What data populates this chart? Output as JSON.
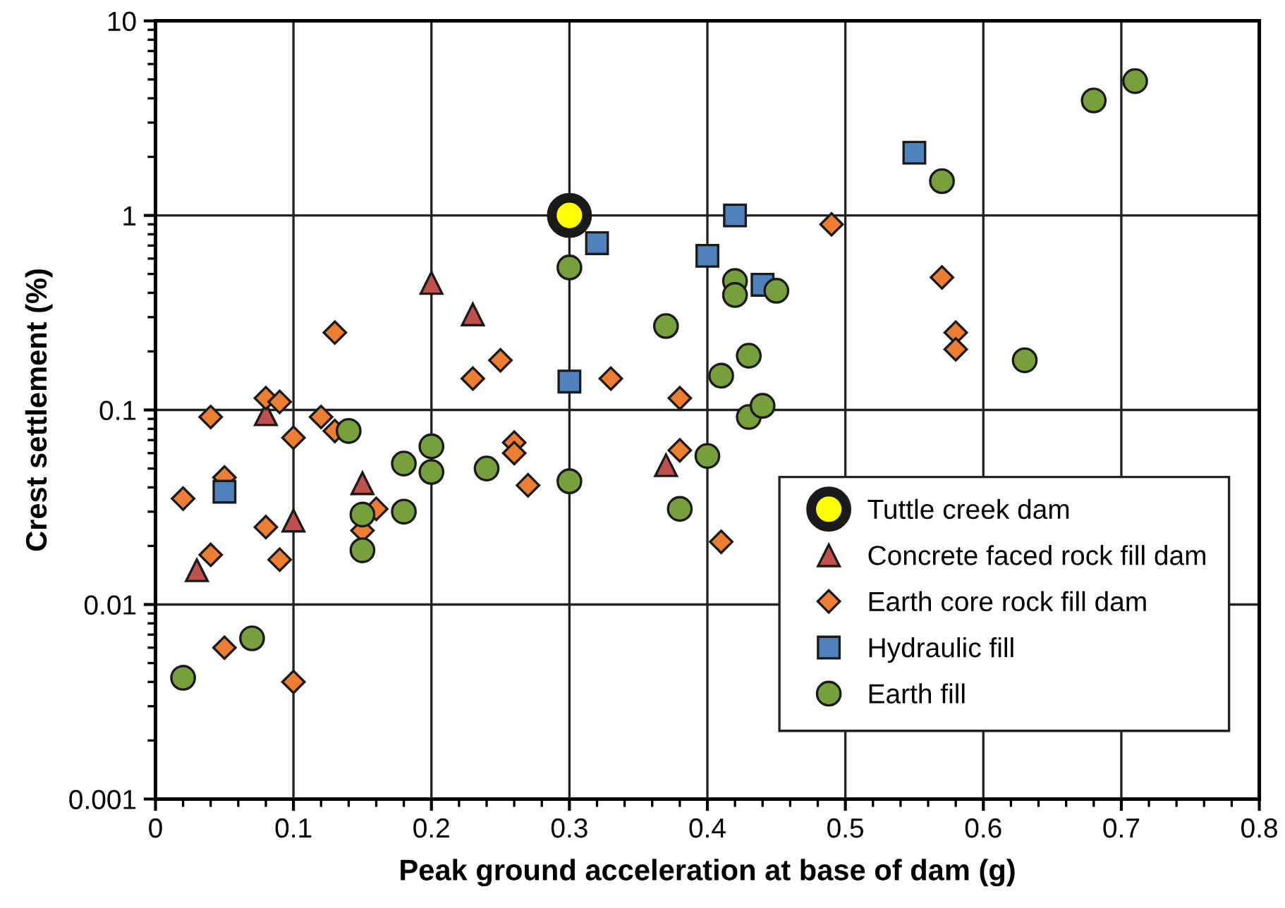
{
  "chart_data": {
    "type": "scatter",
    "xlabel": "Peak ground acceleration at base of dam (g)",
    "ylabel": "Crest settlement (%)",
    "log": "y",
    "xlim": [
      0,
      0.8
    ],
    "xticks": [
      0,
      0.1,
      0.2,
      0.3,
      0.4,
      0.5,
      0.6,
      0.7,
      0.8
    ],
    "ylim": [
      0.001,
      10
    ],
    "yticks": [
      0.001,
      0.01,
      0.1,
      1,
      10
    ],
    "grid": true,
    "legend": "bottom right",
    "series": [
      {
        "name": "Tuttle creek dam",
        "color": "#ffff00",
        "marker": "circle",
        "x": [
          0.3
        ],
        "values": [
          1.0
        ]
      },
      {
        "name": "Concrete faced rock fill dam",
        "color": "#c0504d",
        "marker": "triangle",
        "x": [
          0.03,
          0.08,
          0.1,
          0.15,
          0.2,
          0.23,
          0.37
        ],
        "values": [
          0.015,
          0.095,
          0.027,
          0.042,
          0.45,
          0.31,
          0.052
        ]
      },
      {
        "name": "Earth core rock fill dam",
        "color": "#ed7d31",
        "marker": "diamond",
        "x": [
          0.02,
          0.04,
          0.04,
          0.05,
          0.05,
          0.08,
          0.08,
          0.09,
          0.09,
          0.1,
          0.1,
          0.12,
          0.13,
          0.13,
          0.15,
          0.16,
          0.23,
          0.25,
          0.26,
          0.26,
          0.27,
          0.33,
          0.38,
          0.38,
          0.41,
          0.49,
          0.57,
          0.58,
          0.58
        ],
        "values": [
          0.035,
          0.018,
          0.092,
          0.045,
          0.006,
          0.115,
          0.025,
          0.11,
          0.017,
          0.072,
          0.004,
          0.092,
          0.25,
          0.078,
          0.024,
          0.031,
          0.145,
          0.18,
          0.068,
          0.06,
          0.041,
          0.145,
          0.115,
          0.062,
          0.021,
          0.9,
          0.48,
          0.25,
          0.205
        ]
      },
      {
        "name": "Hydraulic fill",
        "color": "#4f81bd",
        "marker": "square",
        "x": [
          0.05,
          0.3,
          0.32,
          0.4,
          0.42,
          0.44,
          0.55
        ],
        "values": [
          0.038,
          0.14,
          0.72,
          0.62,
          1.0,
          0.44,
          2.1
        ]
      },
      {
        "name": "Earth fill",
        "color": "#77a03c",
        "marker": "circle",
        "x": [
          0.02,
          0.07,
          0.14,
          0.15,
          0.15,
          0.18,
          0.18,
          0.2,
          0.2,
          0.24,
          0.3,
          0.3,
          0.37,
          0.38,
          0.4,
          0.41,
          0.42,
          0.42,
          0.43,
          0.43,
          0.44,
          0.45,
          0.57,
          0.63,
          0.68,
          0.71
        ],
        "values": [
          0.0042,
          0.0067,
          0.078,
          0.029,
          0.019,
          0.053,
          0.03,
          0.065,
          0.048,
          0.05,
          0.54,
          0.043,
          0.27,
          0.031,
          0.058,
          0.15,
          0.46,
          0.39,
          0.19,
          0.092,
          0.105,
          0.41,
          1.5,
          0.18,
          3.9,
          4.9
        ]
      }
    ]
  }
}
